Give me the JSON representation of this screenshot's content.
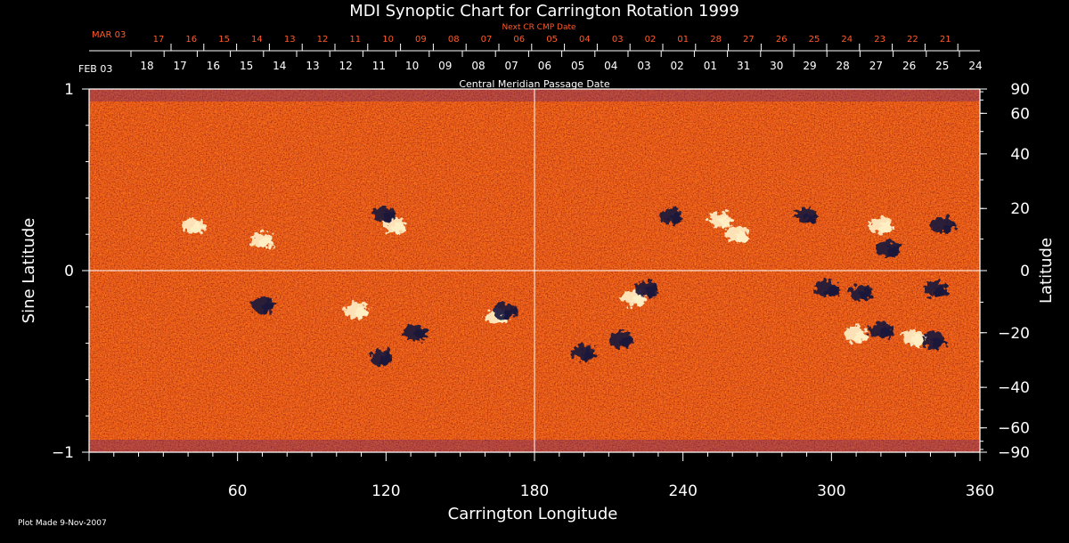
{
  "chart_data": {
    "type": "heatmap",
    "title": "MDI Synoptic Chart for Carrington Rotation 1999",
    "xlabel": "Carrington Longitude",
    "ylabel_left": "Sine Latitude",
    "ylabel_right": "Latitude",
    "xlim": [
      0,
      360
    ],
    "ylim": [
      -1,
      1
    ],
    "x_ticks": [
      60,
      120,
      180,
      240,
      300,
      360
    ],
    "y_ticks_left": [
      "1",
      "0",
      "−1"
    ],
    "y_ticks_left_values": [
      1,
      0,
      -1
    ],
    "latitude_ticks": [
      90,
      60,
      40,
      20,
      0,
      -20,
      -40,
      -60,
      -90
    ],
    "latitude_tick_labels": [
      "90",
      "60",
      "40",
      "20",
      "0",
      "−20",
      "−40",
      "−60",
      "−90"
    ],
    "grid": {
      "vertical_line_at_longitude": 180,
      "horizontal_line_at_sine_latitude": 0
    },
    "cmp_axis": {
      "label": "Central Meridian Passage Date",
      "month_label": "FEB 03",
      "dates": [
        "18",
        "17",
        "16",
        "15",
        "14",
        "13",
        "12",
        "11",
        "10",
        "09",
        "08",
        "07",
        "06",
        "05",
        "04",
        "03",
        "02",
        "01",
        "31",
        "30",
        "29",
        "28",
        "27",
        "26",
        "25",
        "24"
      ]
    },
    "next_cr_axis": {
      "label": "Next CR CMP Date",
      "month_label": "MAR 03",
      "dates": [
        "17",
        "16",
        "15",
        "14",
        "13",
        "12",
        "11",
        "10",
        "09",
        "08",
        "07",
        "06",
        "05",
        "04",
        "03",
        "02",
        "01",
        "28",
        "27",
        "26",
        "25",
        "24",
        "23",
        "22",
        "21"
      ]
    },
    "colors": {
      "background": "#000000",
      "map_base": "#e8561a",
      "positive": "#fff1c8",
      "negative": "#14143c",
      "next_cr_text": "#ff5a2a",
      "axis": "#ffffff"
    },
    "regions": [
      {
        "polarity": "positive",
        "lon": 165,
        "sinlat": -0.25
      },
      {
        "polarity": "positive",
        "lon": 123,
        "sinlat": 0.25
      },
      {
        "polarity": "negative",
        "lon": 119,
        "sinlat": 0.31
      },
      {
        "polarity": "negative",
        "lon": 132,
        "sinlat": -0.34
      },
      {
        "polarity": "negative",
        "lon": 118,
        "sinlat": -0.48
      },
      {
        "polarity": "negative",
        "lon": 168,
        "sinlat": -0.22
      },
      {
        "polarity": "positive",
        "lon": 42,
        "sinlat": 0.25
      },
      {
        "polarity": "positive",
        "lon": 70,
        "sinlat": 0.17
      },
      {
        "polarity": "negative",
        "lon": 70,
        "sinlat": -0.19
      },
      {
        "polarity": "positive",
        "lon": 108,
        "sinlat": -0.22
      },
      {
        "polarity": "positive",
        "lon": 220,
        "sinlat": -0.15
      },
      {
        "polarity": "negative",
        "lon": 225,
        "sinlat": -0.1
      },
      {
        "polarity": "negative",
        "lon": 215,
        "sinlat": -0.38
      },
      {
        "polarity": "negative",
        "lon": 200,
        "sinlat": -0.45
      },
      {
        "polarity": "negative",
        "lon": 235,
        "sinlat": 0.3
      },
      {
        "polarity": "positive",
        "lon": 255,
        "sinlat": 0.28
      },
      {
        "polarity": "positive",
        "lon": 262,
        "sinlat": 0.2
      },
      {
        "polarity": "negative",
        "lon": 298,
        "sinlat": -0.1
      },
      {
        "polarity": "negative",
        "lon": 312,
        "sinlat": -0.12
      },
      {
        "polarity": "positive",
        "lon": 310,
        "sinlat": -0.35
      },
      {
        "polarity": "negative",
        "lon": 320,
        "sinlat": -0.33
      },
      {
        "polarity": "negative",
        "lon": 341,
        "sinlat": -0.38
      },
      {
        "polarity": "positive",
        "lon": 333,
        "sinlat": -0.37
      },
      {
        "polarity": "negative",
        "lon": 342,
        "sinlat": -0.1
      },
      {
        "polarity": "negative",
        "lon": 323,
        "sinlat": 0.12
      },
      {
        "polarity": "negative",
        "lon": 345,
        "sinlat": 0.25
      },
      {
        "polarity": "positive",
        "lon": 320,
        "sinlat": 0.25
      },
      {
        "polarity": "negative",
        "lon": 290,
        "sinlat": 0.3
      }
    ]
  },
  "footer": {
    "plot_made": "Plot Made  9-Nov-2007"
  }
}
